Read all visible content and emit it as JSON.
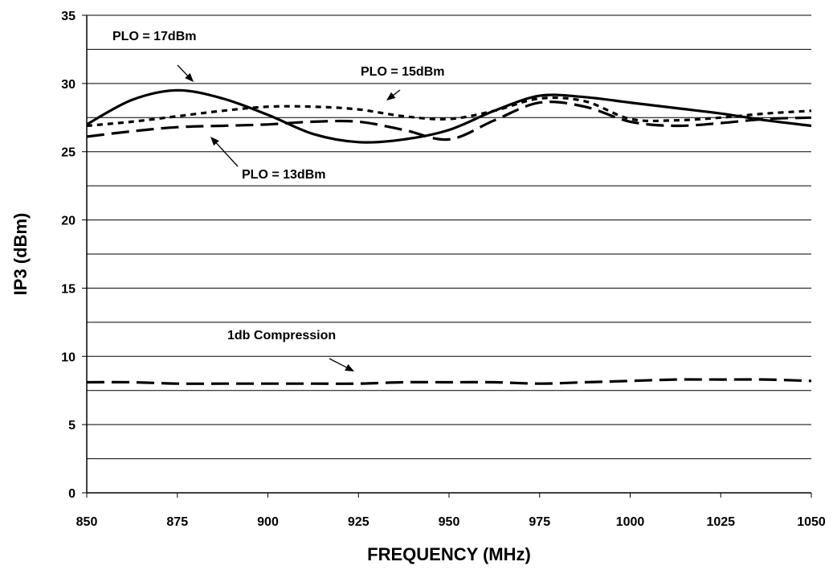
{
  "chart_data": {
    "type": "line",
    "xlabel": "FREQUENCY (MHz)",
    "ylabel": "IP3 (dBm)",
    "xlim": [
      850,
      1050
    ],
    "ylim": [
      0,
      35
    ],
    "x_ticks": [
      850,
      875,
      900,
      925,
      950,
      975,
      1000,
      1025,
      1050
    ],
    "y_ticks": [
      0,
      5,
      10,
      15,
      20,
      25,
      30,
      35
    ],
    "minor_gridlines_y": [
      2.5,
      7.5,
      12.5,
      17.5,
      22.5,
      27.5,
      32.5
    ],
    "grid": true,
    "x": [
      850,
      862.5,
      875,
      887.5,
      900,
      912.5,
      925,
      937.5,
      950,
      962.5,
      975,
      987.5,
      1000,
      1012.5,
      1025,
      1037.5,
      1050
    ],
    "series": [
      {
        "label": "PLO = 17dBm",
        "style": "solid",
        "values": [
          27.0,
          28.8,
          29.5,
          28.9,
          27.7,
          26.3,
          25.7,
          25.9,
          26.6,
          28.0,
          29.1,
          29.0,
          28.6,
          28.2,
          27.8,
          27.3,
          26.9
        ]
      },
      {
        "label": "PLO = 15dBm",
        "style": "dotted",
        "values": [
          26.9,
          27.2,
          27.6,
          28.0,
          28.3,
          28.3,
          28.1,
          27.6,
          27.4,
          28.0,
          28.9,
          28.7,
          27.4,
          27.3,
          27.5,
          27.8,
          28.0
        ]
      },
      {
        "label": "PLO = 13dBm",
        "style": "dashed",
        "values": [
          26.1,
          26.5,
          26.8,
          26.9,
          27.0,
          27.2,
          27.2,
          26.6,
          25.9,
          27.3,
          28.6,
          28.3,
          27.2,
          26.9,
          27.1,
          27.4,
          27.5
        ]
      },
      {
        "label": "1db Compression",
        "style": "dashed",
        "values": [
          8.1,
          8.1,
          8.0,
          8.0,
          8.0,
          8.0,
          8.0,
          8.1,
          8.1,
          8.1,
          8.0,
          8.1,
          8.2,
          8.3,
          8.3,
          8.3,
          8.2
        ]
      }
    ],
    "annotations": [
      {
        "text": "PLO = 17dBm",
        "series": 0
      },
      {
        "text": "PLO = 15dBm",
        "series": 1
      },
      {
        "text": "PLO = 13dBm",
        "series": 2
      },
      {
        "text": "1db Compression",
        "series": 3
      }
    ]
  }
}
